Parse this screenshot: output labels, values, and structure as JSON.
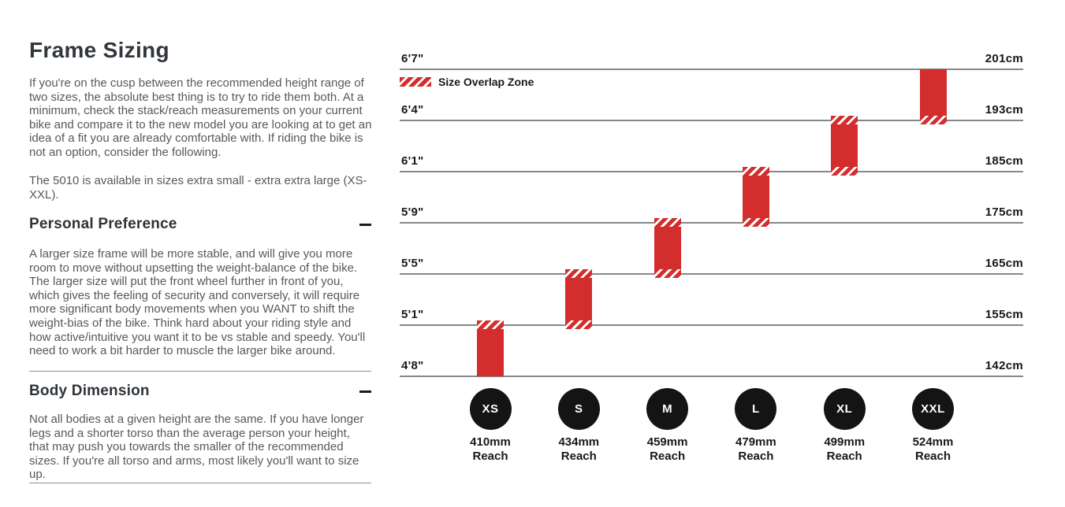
{
  "page": {
    "title": "Frame Sizing",
    "intro": "If you're on the cusp between the recommended height range of two sizes, the absolute best thing is to try to ride them both. At a minimum, check the stack/reach measurements on your current bike and compare it to the new model you are looking at to get an idea of a fit you are already comfortable with. If riding the bike is not an option, consider the following.",
    "availability": "The 5010 is available in sizes extra small - extra extra large (XS-XXL).",
    "sections": [
      {
        "heading": "Personal Preference",
        "toggle_icon": "minus-icon",
        "body": "A larger size frame will be more stable, and will give you more room to move without upsetting the weight-balance of the bike. The larger size will put the front wheel further in front of you, which gives the feeling of security and conversely, it will require more significant body movements when you WANT to shift the weight-bias of the bike. Think hard about your riding style and how active/intuitive you want it to be vs stable and speedy. You'll need to work a bit harder to muscle the larger bike around."
      },
      {
        "heading": "Body Dimension",
        "toggle_icon": "minus-icon",
        "body": "Not all bodies at a given height are the same. If you have longer legs and a shorter torso than the average person your height, that may push you towards the smaller of the recommended sizes. If you're all torso and arms, most likely you'll want to size up."
      }
    ]
  },
  "chart_data": {
    "type": "bar",
    "title": "",
    "legend": {
      "label": "Size Overlap Zone",
      "swatch": "red-hatch",
      "position": "top-left"
    },
    "axis": {
      "left_labels": [
        "6'7\"",
        "6'4\"",
        "6'1\"",
        "5'9\"",
        "5'5\"",
        "5'1\"",
        "4'8\""
      ],
      "right_labels": [
        "201cm",
        "193cm",
        "185cm",
        "175cm",
        "165cm",
        "155cm",
        "142cm"
      ],
      "grid": true
    },
    "reach_suffix": "Reach",
    "sizes": [
      {
        "label": "XS",
        "reach": "410mm",
        "height_range_ft": [
          "4'8\"",
          "5'1\""
        ],
        "height_range_cm": [
          142,
          155
        ],
        "overlap_upper": true,
        "overlap_lower": false
      },
      {
        "label": "S",
        "reach": "434mm",
        "height_range_ft": [
          "5'1\"",
          "5'5\""
        ],
        "height_range_cm": [
          155,
          165
        ],
        "overlap_upper": true,
        "overlap_lower": true
      },
      {
        "label": "M",
        "reach": "459mm",
        "height_range_ft": [
          "5'5\"",
          "5'9\""
        ],
        "height_range_cm": [
          165,
          175
        ],
        "overlap_upper": true,
        "overlap_lower": true
      },
      {
        "label": "L",
        "reach": "479mm",
        "height_range_ft": [
          "5'9\"",
          "6'1\""
        ],
        "height_range_cm": [
          175,
          185
        ],
        "overlap_upper": true,
        "overlap_lower": true
      },
      {
        "label": "XL",
        "reach": "499mm",
        "height_range_ft": [
          "6'1\"",
          "6'4\""
        ],
        "height_range_cm": [
          185,
          193
        ],
        "overlap_upper": true,
        "overlap_lower": true
      },
      {
        "label": "XXL",
        "reach": "524mm",
        "height_range_ft": [
          "6'4\"",
          "6'7\""
        ],
        "height_range_cm": [
          193,
          201
        ],
        "overlap_upper": false,
        "overlap_lower": true
      }
    ],
    "colors": {
      "bar_red": "#d32d2d",
      "hatch_stripe": "#ffffff",
      "gridline_gray": "#85878a",
      "circle_black": "#141414",
      "text_dark": "#17181a"
    }
  }
}
